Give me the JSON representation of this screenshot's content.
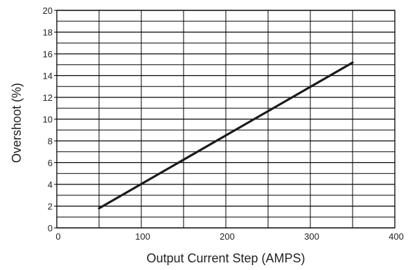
{
  "chart_data": {
    "type": "line",
    "title": "",
    "xlabel": "Output Current Step (AMPS)",
    "ylabel": "Overshoot  (%)",
    "xlim": [
      0,
      400
    ],
    "ylim": [
      0,
      20
    ],
    "x_ticks": [
      0,
      100,
      200,
      300,
      400
    ],
    "y_ticks": [
      0,
      2,
      4,
      6,
      8,
      10,
      12,
      14,
      16,
      18,
      20
    ],
    "x_tick_labels": [
      "0",
      "100",
      "200",
      "300",
      "400"
    ],
    "y_tick_labels": [
      "0",
      "2",
      "4",
      "6",
      "8",
      "10",
      "12",
      "14",
      "16",
      "18",
      "20"
    ],
    "grid": true,
    "series": [
      {
        "x": [
          50,
          350
        ],
        "y": [
          1.8,
          15.2
        ]
      }
    ],
    "colors": {
      "line": "#1a1a1a",
      "grid": "#000000",
      "text": "#222222"
    }
  }
}
